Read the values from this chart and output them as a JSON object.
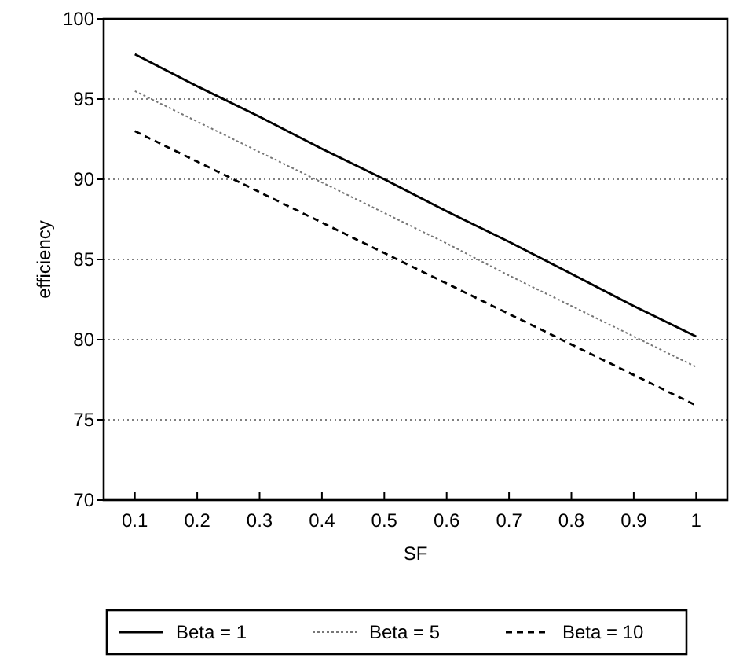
{
  "chart_data": {
    "type": "line",
    "xlabel": "SF",
    "ylabel": "efficiency",
    "categories": [
      "0.1",
      "0.2",
      "0.3",
      "0.4",
      "0.5",
      "0.6",
      "0.7",
      "0.8",
      "0.9",
      "1"
    ],
    "ylim": [
      70,
      100
    ],
    "yticks": [
      70,
      75,
      80,
      85,
      90,
      95,
      100
    ],
    "grid": "y",
    "legend": "bottom",
    "series": [
      {
        "name": "Beta = 1",
        "color": "#000000",
        "line_style": "solid",
        "values": [
          97.8,
          95.8,
          93.9,
          91.9,
          90.0,
          88.0,
          86.1,
          84.1,
          82.1,
          80.2
        ]
      },
      {
        "name": "Beta = 5",
        "color": "#777777",
        "line_style": "dotted",
        "values": [
          95.5,
          93.6,
          91.7,
          89.8,
          87.9,
          86.0,
          84.0,
          82.1,
          80.2,
          78.3
        ]
      },
      {
        "name": "Beta = 10",
        "color": "#000000",
        "line_style": "dashed",
        "values": [
          93.0,
          91.1,
          89.2,
          87.3,
          85.4,
          83.5,
          81.6,
          79.7,
          77.8,
          75.9
        ]
      }
    ]
  }
}
